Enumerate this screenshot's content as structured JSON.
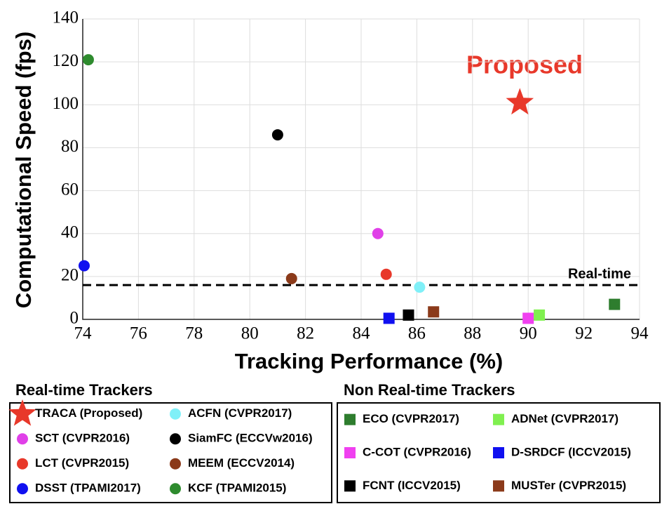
{
  "chart_data": {
    "type": "scatter",
    "xlabel": "Tracking Performance (%)",
    "ylabel": "Computational Speed (fps)",
    "annotation": {
      "text": "Proposed",
      "color": "#e8382a"
    },
    "xlim": [
      74,
      94
    ],
    "xticks": [
      74,
      76,
      78,
      80,
      82,
      84,
      86,
      88,
      90,
      92,
      94
    ],
    "ylim": [
      0,
      140
    ],
    "yticks": [
      0,
      20,
      40,
      60,
      80,
      100,
      120,
      140
    ],
    "grid": true,
    "threshold": {
      "label": "Real-time",
      "value": 16
    },
    "series_groups": [
      {
        "title": "Real-time Trackers",
        "series": [
          {
            "name": "TRACA (Proposed)",
            "marker": "star",
            "color": "#e8382a",
            "x": [
              89.7
            ],
            "values": [
              101
            ]
          },
          {
            "name": "SCT (CVPR2016)",
            "marker": "circle",
            "color": "#e040e8",
            "x": [
              84.6
            ],
            "values": [
              40
            ]
          },
          {
            "name": "LCT (CVPR2015)",
            "marker": "circle",
            "color": "#e8382a",
            "x": [
              84.9
            ],
            "values": [
              21
            ]
          },
          {
            "name": "DSST (TPAMI2017)",
            "marker": "circle",
            "color": "#1010f0",
            "x": [
              74.05
            ],
            "values": [
              25
            ]
          },
          {
            "name": "ACFN (CVPR2017)",
            "marker": "circle",
            "color": "#80f0f8",
            "x": [
              86.1
            ],
            "values": [
              15
            ]
          },
          {
            "name": "SiamFC (ECCVw2016)",
            "marker": "circle",
            "color": "#000000",
            "x": [
              81.0
            ],
            "values": [
              86
            ]
          },
          {
            "name": "MEEM (ECCV2014)",
            "marker": "circle",
            "color": "#8b3a1a",
            "x": [
              81.5
            ],
            "values": [
              19
            ]
          },
          {
            "name": "KCF (TPAMI2015)",
            "marker": "circle",
            "color": "#2e8b2e",
            "x": [
              74.2
            ],
            "values": [
              121
            ]
          }
        ]
      },
      {
        "title": "Non Real-time Trackers",
        "series": [
          {
            "name": "ECO (CVPR2017)",
            "marker": "square",
            "color": "#2e7d2e",
            "x": [
              93.1
            ],
            "values": [
              7
            ]
          },
          {
            "name": "C-COT (CVPR2016)",
            "marker": "square",
            "color": "#f040f0",
            "x": [
              90.0
            ],
            "values": [
              0.5
            ]
          },
          {
            "name": "FCNT (ICCV2015)",
            "marker": "square",
            "color": "#000000",
            "x": [
              85.7
            ],
            "values": [
              2
            ]
          },
          {
            "name": "ADNet (CVPR2017)",
            "marker": "square",
            "color": "#80f050",
            "x": [
              90.4
            ],
            "values": [
              2
            ]
          },
          {
            "name": "D-SRDCF (ICCV2015)",
            "marker": "square",
            "color": "#1010f0",
            "x": [
              85.0
            ],
            "values": [
              0.5
            ]
          },
          {
            "name": "MUSTer (CVPR2015)",
            "marker": "square",
            "color": "#8b3a1a",
            "x": [
              86.6
            ],
            "values": [
              3.5
            ]
          }
        ]
      }
    ]
  }
}
